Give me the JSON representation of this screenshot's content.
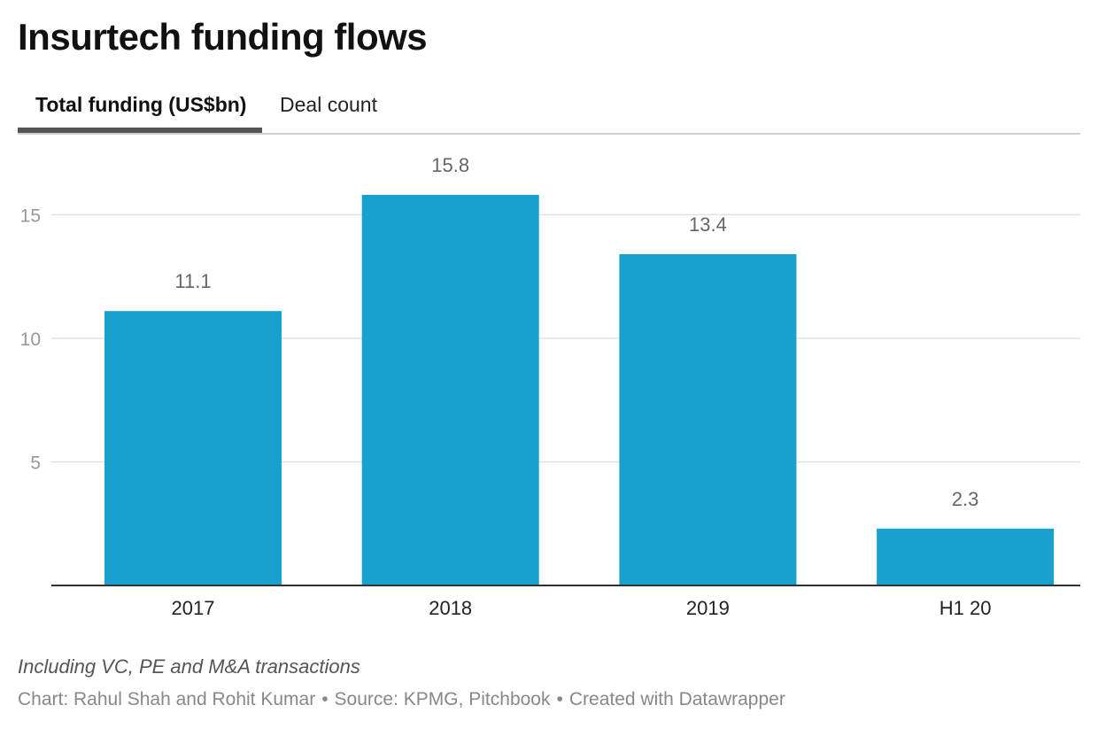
{
  "title": "Insurtech funding flows",
  "tabs": [
    {
      "label": "Total funding (US$bn)",
      "active": true
    },
    {
      "label": "Deal count",
      "active": false
    }
  ],
  "chart_data": {
    "type": "bar",
    "title": "Insurtech funding flows",
    "series_name": "Total funding (US$bn)",
    "categories": [
      "2017",
      "2018",
      "2019",
      "H1 20"
    ],
    "values": [
      11.1,
      15.8,
      13.4,
      2.3
    ],
    "value_labels": [
      "11.1",
      "15.8",
      "13.4",
      "2.3"
    ],
    "yticks": [
      5,
      10,
      15
    ],
    "ytick_labels": [
      "5",
      "10",
      "15"
    ],
    "ylim": [
      0,
      15.8
    ],
    "xlabel": "",
    "ylabel": "",
    "grid": true,
    "bar_color": "#1aa0cd"
  },
  "note": "Including VC, PE and M&A transactions",
  "footer": {
    "chart_credit": "Chart: Rahul Shah and Rohit Kumar",
    "source": "Source: KPMG, Pitchbook",
    "created_with": "Created with Datawrapper",
    "separator": "•"
  }
}
